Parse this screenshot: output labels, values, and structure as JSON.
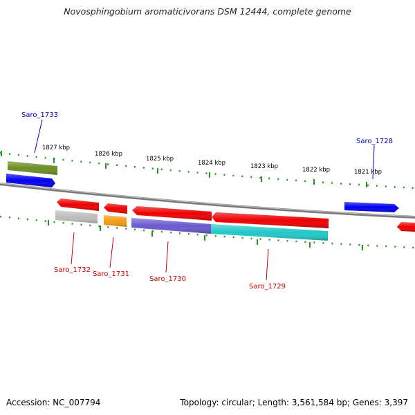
{
  "title": "Novosphingobium aromaticivorans DSM 12444, complete genome",
  "footer": {
    "accession": "Accession: NC_007794",
    "summary": "Topology: circular; Length: 3,561,584 bp; Genes: 3,397"
  },
  "colors": {
    "backbone": "#7a7a7a",
    "tick": "#1e9a1e",
    "forward_label": "#0000c0",
    "reverse_label": "#cc0000"
  },
  "ticks": [
    "1827 kbp",
    "1826 kbp",
    "1825 kbp",
    "1824 kbp",
    "1823 kbp",
    "1822 kbp",
    "1821 kbp"
  ],
  "gene_labels": {
    "saro_1733": "Saro_1733",
    "saro_1728": "Saro_1728",
    "saro_1732": "Saro_1732",
    "saro_1731": "Saro_1731",
    "saro_1730": "Saro_1730",
    "saro_1729": "Saro_1729"
  },
  "features": [
    {
      "id": "fwd-blue-left",
      "color": "#0000ee",
      "strand": "forward"
    },
    {
      "id": "fwd-olive",
      "color": "#6b8e23",
      "strand": "forward"
    },
    {
      "id": "fwd-blue-right",
      "color": "#0000ee",
      "strand": "forward"
    },
    {
      "id": "rev-red-1732",
      "color": "#ee0000",
      "strand": "reverse"
    },
    {
      "id": "rev-red-1731",
      "color": "#ee0000",
      "strand": "reverse"
    },
    {
      "id": "rev-red-1730",
      "color": "#ee0000",
      "strand": "reverse"
    },
    {
      "id": "rev-red-1729",
      "color": "#ee0000",
      "strand": "reverse"
    },
    {
      "id": "rev-red-edge",
      "color": "#ee0000",
      "strand": "reverse"
    },
    {
      "id": "gray-1732",
      "color": "#bdbdbd",
      "strand": "reverse"
    },
    {
      "id": "orange-1731",
      "color": "#f39c12",
      "strand": "reverse"
    },
    {
      "id": "purple-1730",
      "color": "#6a5acd",
      "strand": "reverse"
    },
    {
      "id": "cyan-1729",
      "color": "#20c8c8",
      "strand": "reverse"
    }
  ]
}
